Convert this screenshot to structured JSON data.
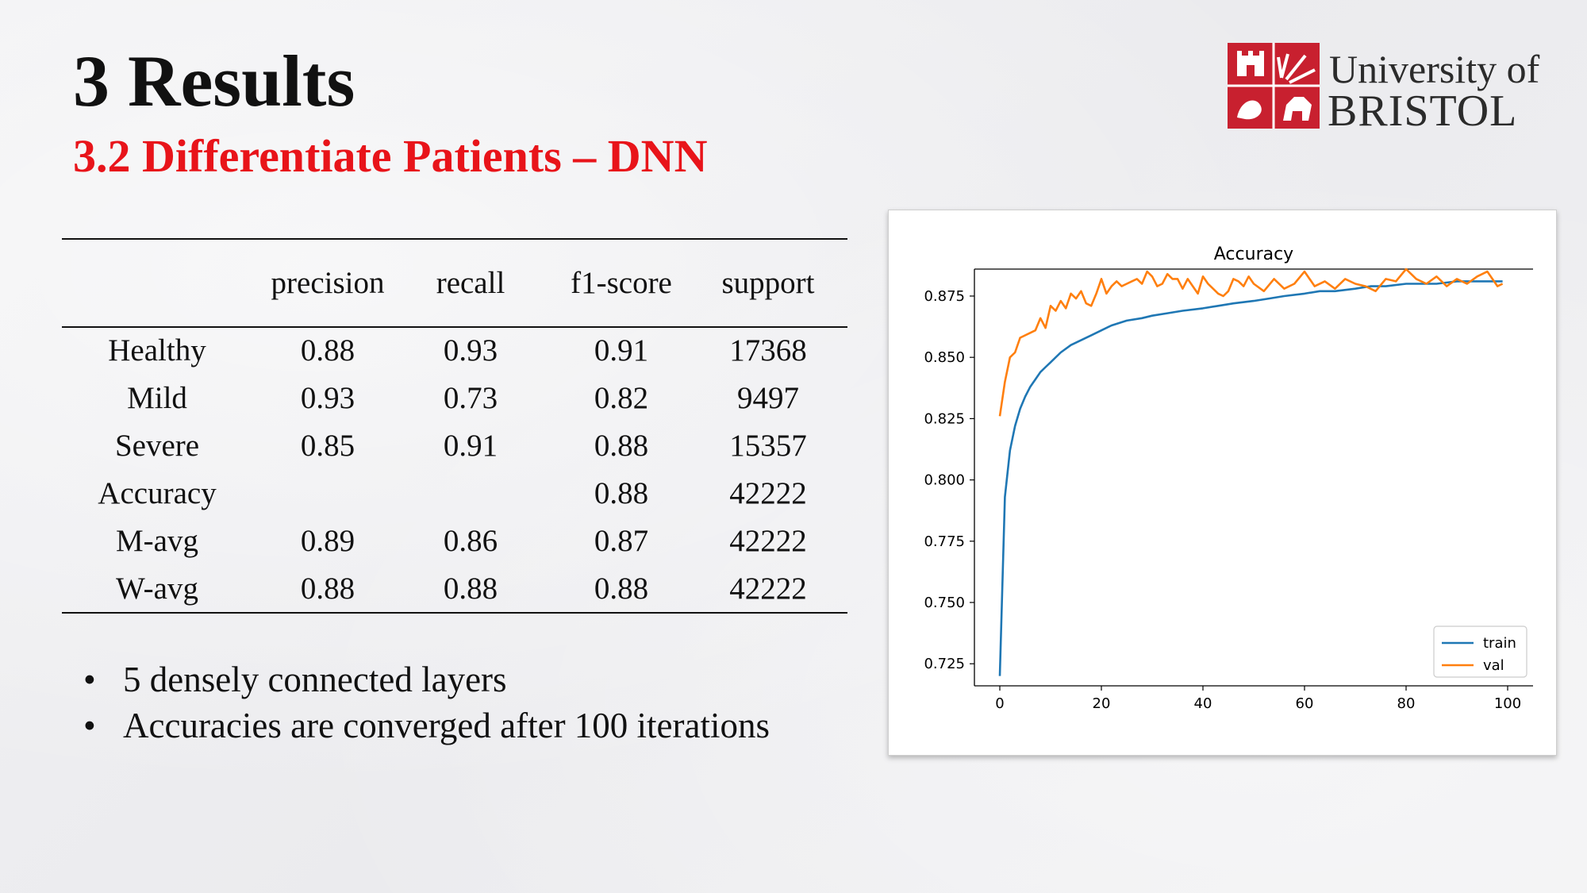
{
  "slide": {
    "title": "3 Results",
    "subtitle": "3.2 Differentiate Patients – DNN",
    "accent_color": "#e8141a"
  },
  "logo": {
    "line1": "University of",
    "line2": "BRISTOL",
    "brand_color": "#c8202f"
  },
  "table": {
    "headers": [
      "",
      "precision",
      "recall",
      "f1-score",
      "support"
    ],
    "rows": [
      [
        "Healthy",
        "0.88",
        "0.93",
        "0.91",
        "17368"
      ],
      [
        "Mild",
        "0.93",
        "0.73",
        "0.82",
        "9497"
      ],
      [
        "Severe",
        "0.85",
        "0.91",
        "0.88",
        "15357"
      ],
      [
        "Accuracy",
        "",
        "",
        "0.88",
        "42222"
      ],
      [
        "M-avg",
        "0.89",
        "0.86",
        "0.87",
        "42222"
      ],
      [
        "W-avg",
        "0.88",
        "0.88",
        "0.88",
        "42222"
      ]
    ]
  },
  "bullets": [
    "5 densely connected layers",
    "Accuracies are converged after 100 iterations"
  ],
  "chart_data": {
    "type": "line",
    "title": "Accuracy",
    "xlabel": "",
    "ylabel": "",
    "xlim": [
      0,
      100
    ],
    "ylim": [
      0.716,
      0.886
    ],
    "xticks": [
      0,
      20,
      40,
      60,
      80,
      100
    ],
    "yticks": [
      0.725,
      0.75,
      0.775,
      0.8,
      0.825,
      0.85,
      0.875
    ],
    "yticklabels": [
      "0.725",
      "0.750",
      "0.775",
      "0.800",
      "0.825",
      "0.850",
      "0.875"
    ],
    "grid": false,
    "legend_position": "lower right",
    "series": [
      {
        "name": "train",
        "color": "#1f77b4",
        "x": [
          0,
          1,
          2,
          3,
          4,
          5,
          6,
          7,
          8,
          9,
          10,
          12,
          14,
          16,
          18,
          20,
          22,
          25,
          28,
          30,
          33,
          36,
          40,
          43,
          46,
          50,
          53,
          56,
          60,
          63,
          66,
          70,
          73,
          76,
          80,
          83,
          86,
          90,
          93,
          96,
          99
        ],
        "values": [
          0.72,
          0.793,
          0.812,
          0.822,
          0.829,
          0.834,
          0.838,
          0.841,
          0.844,
          0.846,
          0.848,
          0.852,
          0.855,
          0.857,
          0.859,
          0.861,
          0.863,
          0.865,
          0.866,
          0.867,
          0.868,
          0.869,
          0.87,
          0.871,
          0.872,
          0.873,
          0.874,
          0.875,
          0.876,
          0.877,
          0.877,
          0.878,
          0.879,
          0.879,
          0.88,
          0.88,
          0.88,
          0.881,
          0.881,
          0.881,
          0.881
        ]
      },
      {
        "name": "val",
        "color": "#ff7f0e",
        "x": [
          0,
          1,
          2,
          3,
          4,
          6,
          7,
          8,
          9,
          10,
          11,
          12,
          13,
          14,
          15,
          16,
          17,
          18,
          19,
          20,
          21,
          22,
          23,
          24,
          25,
          26,
          27,
          28,
          29,
          30,
          31,
          32,
          33,
          34,
          35,
          36,
          37,
          38,
          39,
          40,
          41,
          42,
          43,
          44,
          45,
          46,
          47,
          48,
          49,
          50,
          52,
          54,
          56,
          58,
          60,
          62,
          64,
          66,
          68,
          70,
          72,
          74,
          76,
          78,
          80,
          82,
          84,
          86,
          88,
          90,
          92,
          94,
          96,
          98,
          99
        ],
        "values": [
          0.826,
          0.84,
          0.85,
          0.852,
          0.858,
          0.86,
          0.861,
          0.866,
          0.862,
          0.871,
          0.869,
          0.873,
          0.87,
          0.876,
          0.874,
          0.877,
          0.872,
          0.871,
          0.876,
          0.882,
          0.876,
          0.879,
          0.881,
          0.879,
          0.88,
          0.881,
          0.882,
          0.88,
          0.885,
          0.883,
          0.879,
          0.88,
          0.884,
          0.882,
          0.882,
          0.878,
          0.882,
          0.879,
          0.876,
          0.883,
          0.88,
          0.878,
          0.876,
          0.875,
          0.877,
          0.882,
          0.881,
          0.879,
          0.883,
          0.88,
          0.877,
          0.882,
          0.878,
          0.88,
          0.885,
          0.879,
          0.881,
          0.878,
          0.882,
          0.88,
          0.879,
          0.877,
          0.882,
          0.881,
          0.886,
          0.882,
          0.88,
          0.883,
          0.879,
          0.882,
          0.88,
          0.883,
          0.885,
          0.879,
          0.88
        ]
      }
    ]
  }
}
